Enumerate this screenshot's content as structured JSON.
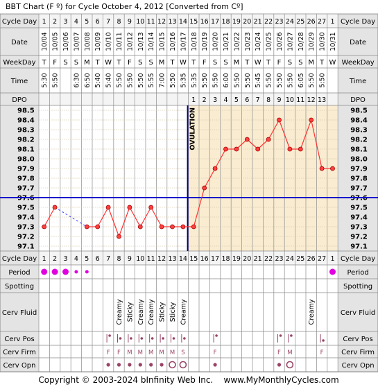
{
  "chart_data": {
    "type": "line",
    "title": "BBT Chart (F º) for Cycle October 4, 2012  [Converted from Cº]",
    "row_labels": {
      "cycle_day": "Cycle Day",
      "date": "Date",
      "weekday": "WeekDay",
      "time": "Time",
      "dpo": "DPO",
      "period": "Period",
      "spotting": "Spotting",
      "cerv_fluid": "Cerv Fluid",
      "cerv_pos": "Cerv Pos",
      "cerv_firm": "Cerv Firm",
      "cerv_opn": "Cerv Opn"
    },
    "cycle_days": [
      "1",
      "2",
      "3",
      "4",
      "5",
      "6",
      "7",
      "8",
      "9",
      "10",
      "11",
      "12",
      "13",
      "14",
      "15",
      "16",
      "17",
      "18",
      "19",
      "20",
      "21",
      "22",
      "23",
      "24",
      "25",
      "26",
      "27",
      "1"
    ],
    "dates": [
      "10/04",
      "10/05",
      "10/06",
      "10/07",
      "10/08",
      "10/09",
      "10/10",
      "10/11",
      "10/12",
      "10/13",
      "10/14",
      "10/15",
      "10/16",
      "10/17",
      "10/18",
      "10/19",
      "10/20",
      "10/21",
      "10/22",
      "10/23",
      "10/24",
      "10/25",
      "10/26",
      "10/27",
      "10/28",
      "10/29",
      "10/30",
      "10/31"
    ],
    "weekdays": [
      "T",
      "F",
      "S",
      "S",
      "M",
      "T",
      "W",
      "T",
      "F",
      "S",
      "S",
      "M",
      "T",
      "W",
      "T",
      "F",
      "S",
      "S",
      "M",
      "T",
      "W",
      "T",
      "F",
      "S",
      "S",
      "M",
      "T",
      "W"
    ],
    "times": [
      "5:30",
      "5:50",
      "",
      "6:30",
      "6:50",
      "5:40",
      "5:40",
      "5:50",
      "5:50",
      "5:50",
      "5:55",
      "7:00",
      "5:50",
      "5:35",
      "5:35",
      "5:50",
      "5:50",
      "6:00",
      "5:50",
      "5:50",
      "5:45",
      "5:50",
      "5:50",
      "5:50",
      "6:05",
      "5:50",
      "5:50",
      ""
    ],
    "dpo": [
      "",
      "",
      "",
      "",
      "",
      "",
      "",
      "",
      "",
      "",
      "",
      "",
      "",
      "",
      "1",
      "2",
      "3",
      "4",
      "5",
      "6",
      "7",
      "8",
      "9",
      "10",
      "11",
      "12",
      "13",
      ""
    ],
    "y_ticks": [
      "98.5",
      "98.4",
      "98.3",
      "98.2",
      "98.1",
      "98.0",
      "97.9",
      "97.8",
      "97.7",
      "97.6",
      "97.5",
      "97.4",
      "97.3",
      "97.2",
      "97.1"
    ],
    "ylim": [
      97.1,
      98.5
    ],
    "temps": [
      97.3,
      97.5,
      null,
      null,
      97.3,
      97.3,
      97.5,
      97.2,
      97.5,
      97.3,
      97.5,
      97.3,
      97.3,
      97.3,
      97.3,
      97.7,
      97.9,
      98.1,
      98.1,
      98.2,
      98.1,
      98.2,
      98.4,
      98.1,
      98.1,
      98.4,
      97.9,
      97.9
    ],
    "dashed_segment": [
      2,
      4
    ],
    "coverline": 97.6,
    "ovulation_day_index": 13,
    "ovulation_label": "OVULATION",
    "period": [
      "heavy",
      "heavy",
      "heavy",
      "light",
      "light",
      "",
      "",
      "",
      "",
      "",
      "",
      "",
      "",
      "",
      "",
      "",
      "",
      "",
      "",
      "",
      "",
      "",
      "",
      "",
      "",
      "",
      "",
      "heavy"
    ],
    "cerv_fluid": [
      "",
      "",
      "",
      "",
      "",
      "",
      "",
      "Creamy",
      "Sticky",
      "Creamy",
      "Creamy",
      "Sticky",
      "Sticky",
      "Creamy",
      "",
      "",
      "",
      "",
      "",
      "",
      "",
      "",
      "",
      "",
      "",
      "Creamy",
      "",
      ""
    ],
    "cerv_pos": [
      "",
      "",
      "",
      "",
      "",
      "",
      "mid",
      "low",
      "low",
      "low",
      "low",
      "low",
      "low",
      "low",
      "",
      "",
      "mid",
      "",
      "",
      "",
      "",
      "",
      "mid",
      "mid",
      "",
      "",
      "high",
      ""
    ],
    "cerv_firm": [
      "",
      "",
      "",
      "",
      "",
      "",
      "F",
      "F",
      "M",
      "M",
      "M",
      "M",
      "M",
      "S",
      "",
      "",
      "F",
      "",
      "",
      "",
      "",
      "",
      "F",
      "M",
      "",
      "",
      "F",
      ""
    ],
    "cerv_opn": [
      "",
      "",
      "",
      "",
      "",
      "",
      "m",
      "m",
      "m",
      "m",
      "m",
      "m",
      "o",
      "o",
      "",
      "",
      "m",
      "",
      "",
      "",
      "",
      "",
      "m",
      "o",
      "",
      "",
      "",
      ""
    ],
    "footer": "Copyright © 2003-2024 bInfinity Web Inc.    www.MyMonthlyCycles.com",
    "colors": {
      "line": "#ff3030",
      "dot": "#ff4040",
      "coverline": "#0000cc",
      "ovulation": "#000080",
      "luteal_bg": "#f9ecd0",
      "plain_bg": "#ffffff",
      "label_bg": "#e4e4e4",
      "period": "#e000e0",
      "cerv": "#994466"
    }
  }
}
